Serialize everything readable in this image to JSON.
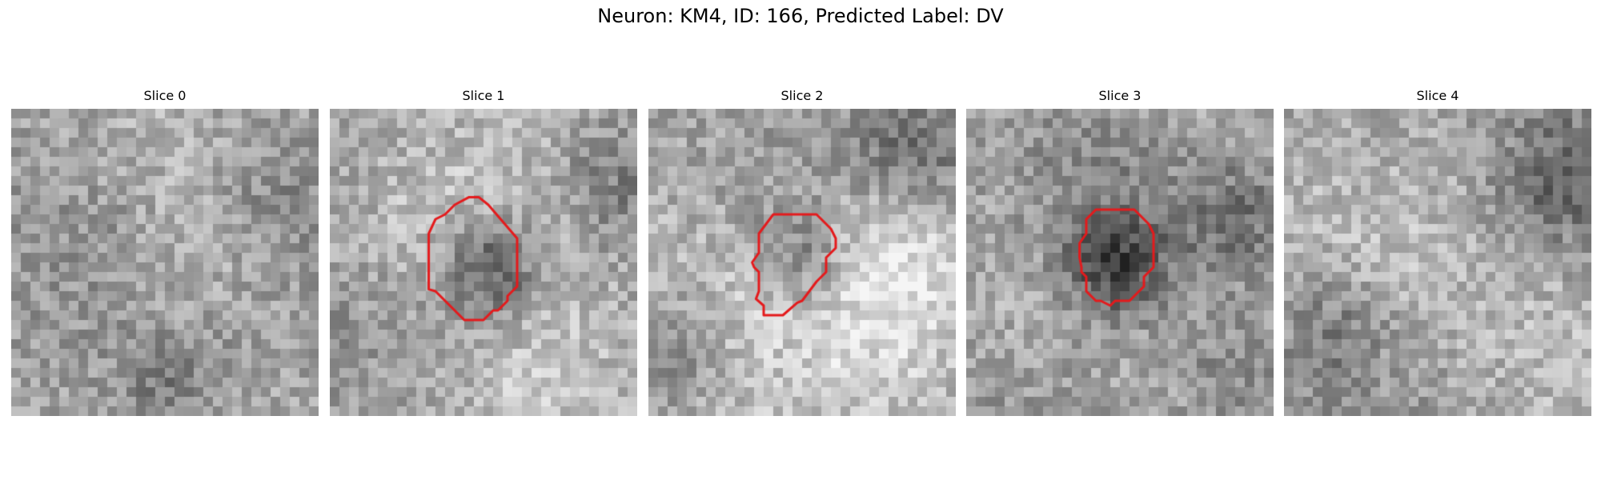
{
  "figure": {
    "title": "Neuron: KM4, ID: 166, Predicted Label: DV",
    "panels": [
      {
        "title": "Slice 0",
        "has_outline": false,
        "darkSpot": [
          0.5,
          0.9
        ],
        "darkRegion": [
          0.85,
          0.3
        ]
      },
      {
        "title": "Slice 1",
        "has_outline": true,
        "darkSpot": [
          0.53,
          0.52
        ],
        "darkRegion": [
          0.9,
          0.25
        ]
      },
      {
        "title": "Slice 2",
        "has_outline": true,
        "darkSpot": [
          0.05,
          0.75
        ],
        "darkRegion": [
          0.85,
          0.15
        ]
      },
      {
        "title": "Slice 3",
        "has_outline": true,
        "darkSpot": [
          0.45,
          0.52
        ],
        "darkRegion": [
          0.85,
          0.35
        ]
      },
      {
        "title": "Slice 4",
        "has_outline": false,
        "darkSpot": [
          0.15,
          0.7
        ],
        "darkRegion": [
          0.9,
          0.25
        ]
      }
    ],
    "outline_color": "#e41a1c"
  }
}
